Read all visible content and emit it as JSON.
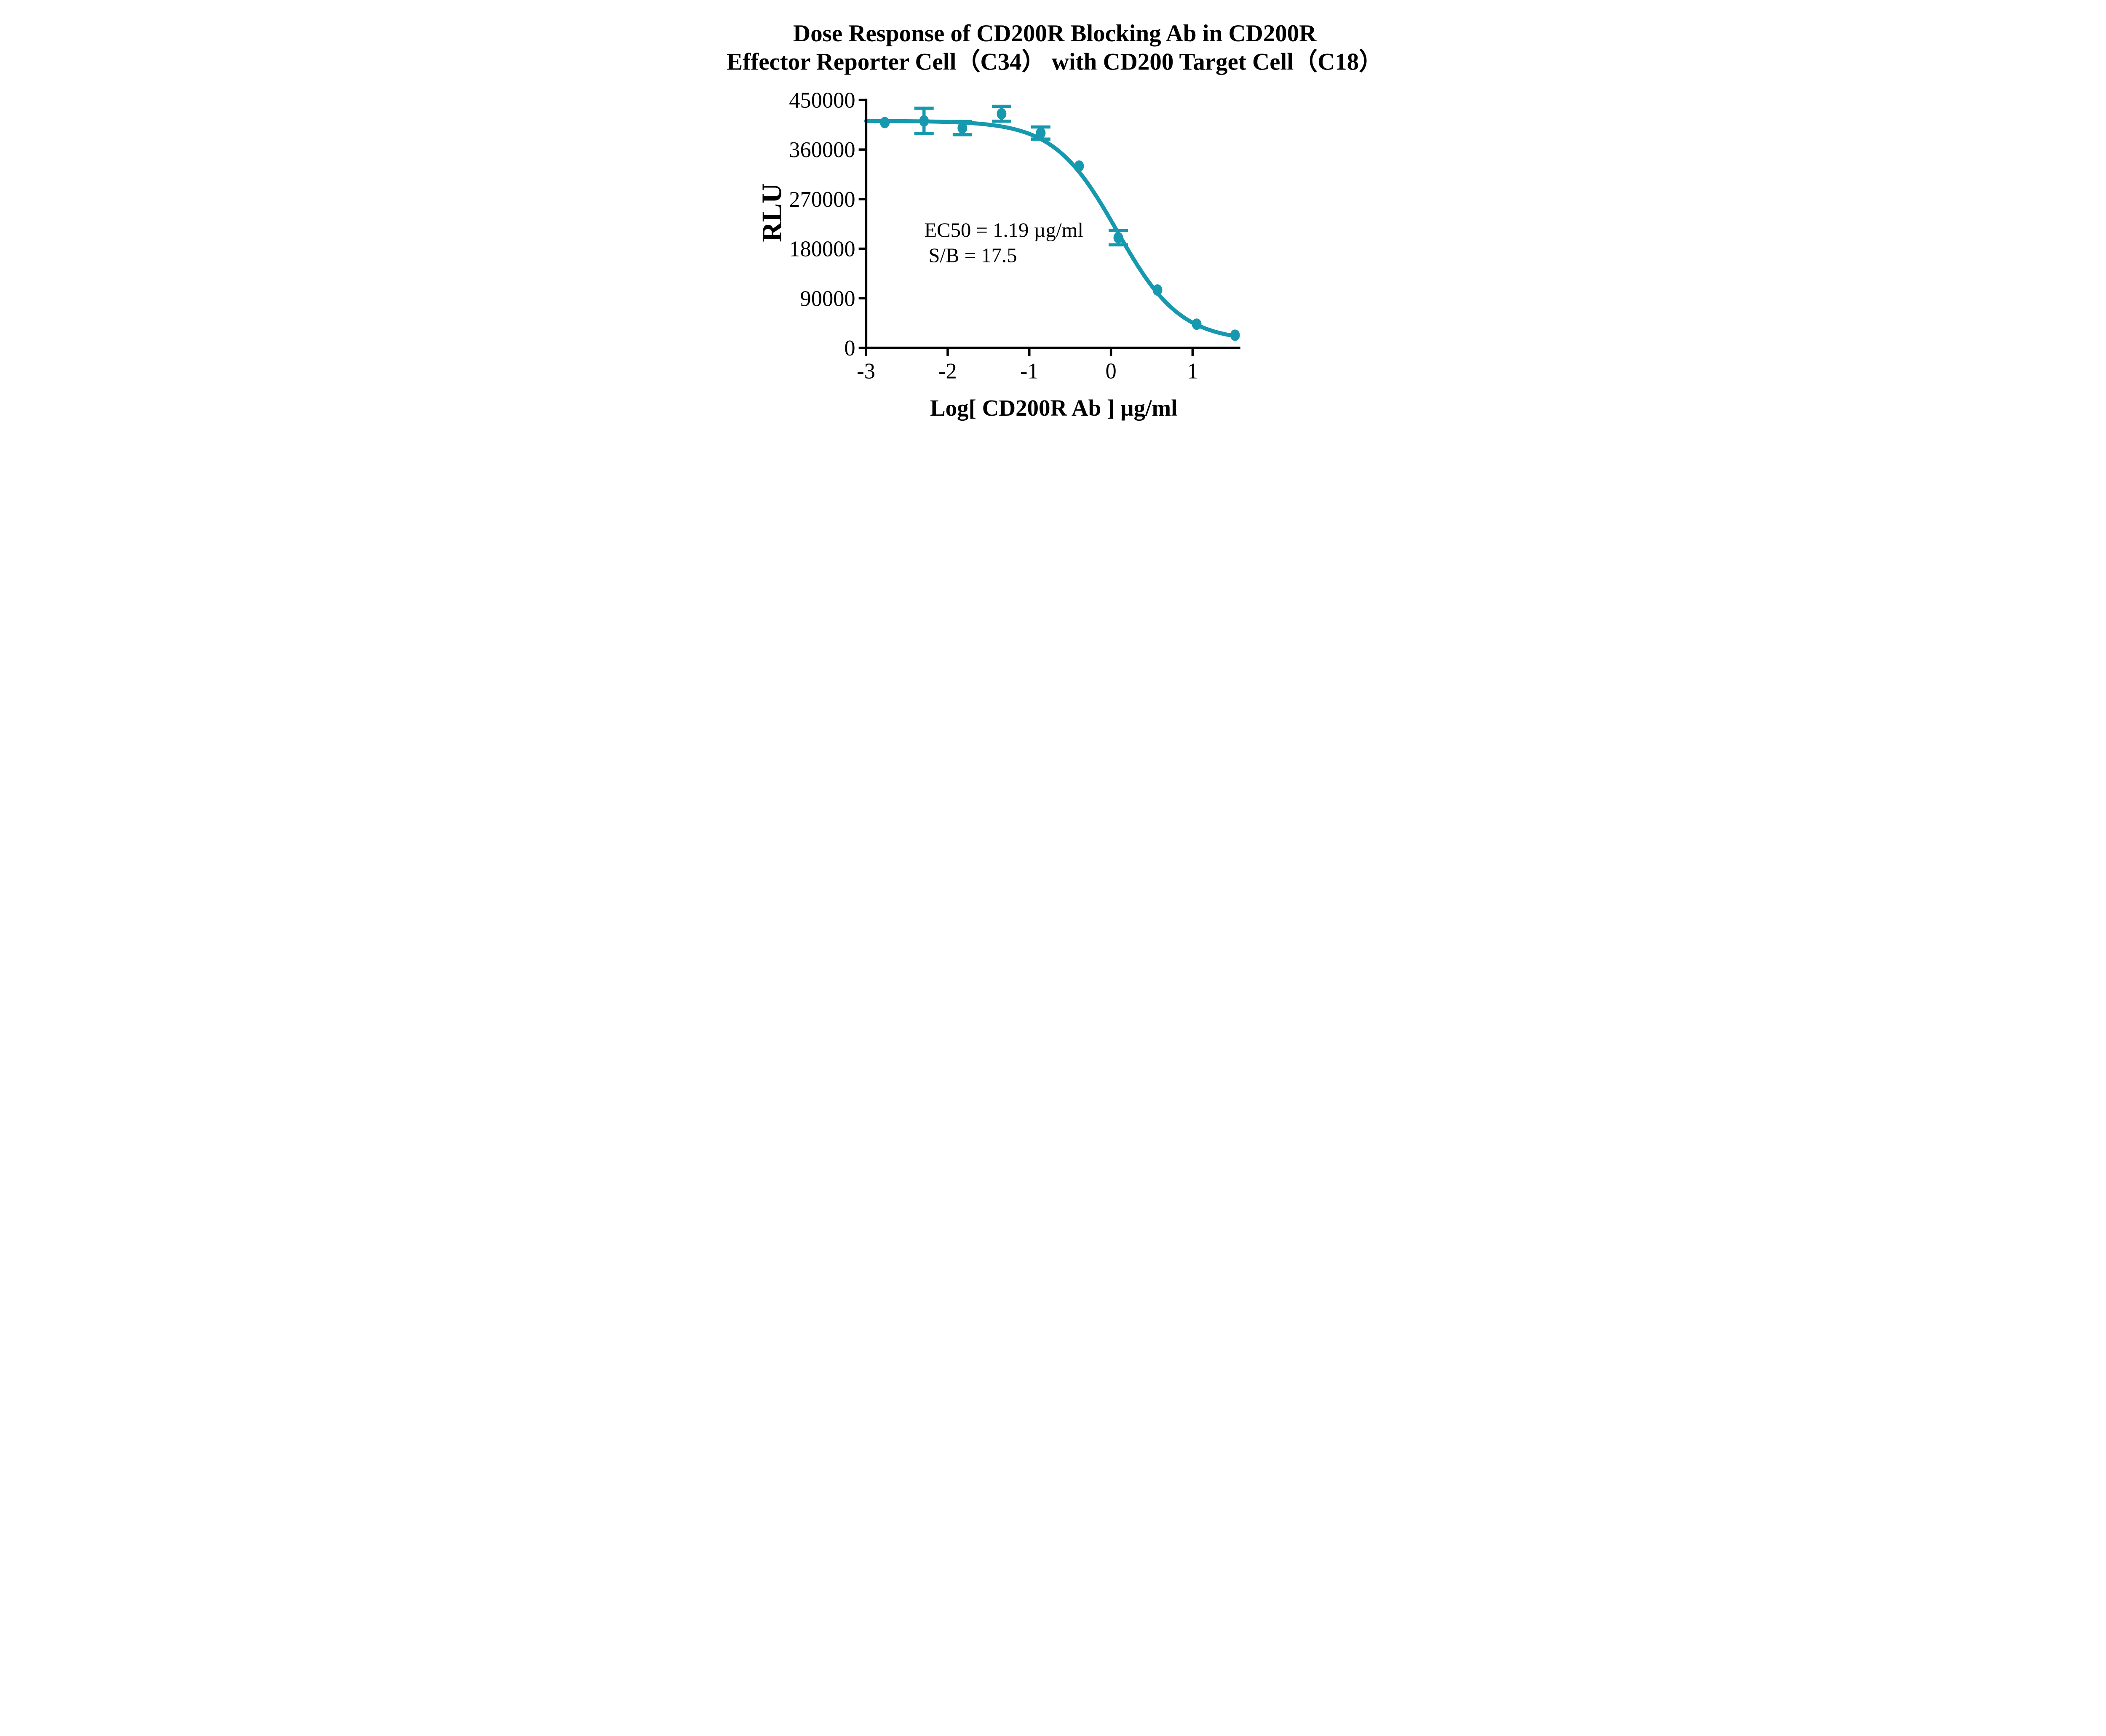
{
  "title": {
    "line1": "Dose Response of CD200R Blocking Ab in CD200R",
    "line2": "Effector Reporter Cell（C34） with CD200 Target Cell（C18）"
  },
  "annotation": {
    "ec50": "EC50 = 1.19 µg/ml",
    "sb": "S/B = 17.5"
  },
  "y_axis": {
    "label": "RLU",
    "ticks": [
      0,
      90000,
      180000,
      270000,
      360000,
      450000
    ],
    "min": 0,
    "max": 450000
  },
  "x_axis": {
    "label": "Log[ CD200R Ab ] µg/ml",
    "ticks": [
      -3,
      -2,
      -1,
      0,
      1
    ],
    "min": -3,
    "max": 1.6
  },
  "chart_data": {
    "type": "scatter",
    "title": "Dose Response of CD200R Blocking Ab in CD200R Effector Reporter Cell（C34） with CD200 Target Cell（C18）",
    "xlabel": "Log[ CD200R Ab ] µg/ml",
    "ylabel": "RLU",
    "xlim": [
      -3,
      1.6
    ],
    "ylim": [
      0,
      450000
    ],
    "grid": false,
    "legend": "none",
    "accent_color": "#1699AE",
    "axis_color": "#000000",
    "series": [
      {
        "name": "CD200R Blocking Ab",
        "x": [
          -2.77,
          -2.29,
          -1.82,
          -1.34,
          -0.86,
          -0.39,
          0.09,
          0.57,
          1.05,
          1.52
        ],
        "y": [
          409000,
          412000,
          399000,
          425000,
          390000,
          330000,
          200000,
          105000,
          43000,
          23000
        ],
        "yerr": [
          0,
          23000,
          12000,
          13500,
          11000,
          0,
          13000,
          0,
          0,
          0
        ]
      }
    ],
    "fit_curve": {
      "model": "four-parameter logistic",
      "top": 412000,
      "bottom": 12000,
      "logEC50": 0.0755,
      "hillslope": 1.12,
      "x_start": -3,
      "x_end": 1.52,
      "ec50_ug_ml": 1.19,
      "signal_to_background": 17.5
    }
  }
}
